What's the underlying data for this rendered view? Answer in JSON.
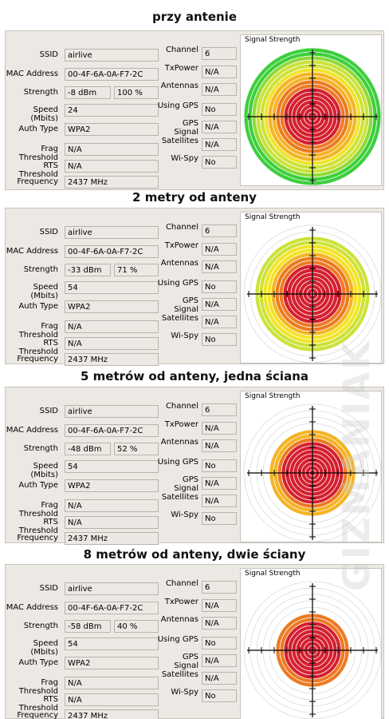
{
  "left_labels": [
    "SSID",
    "MAC Address",
    "Strength",
    "Speed (Mbits)",
    "Auth Type",
    "Frag Threshold",
    "RTS Threshold",
    "Frequency"
  ],
  "right_labels": [
    "Channel",
    "TxPower",
    "Antennas",
    "Using GPS",
    "GPS Signal",
    "Satellites",
    "Wi-Spy"
  ],
  "signal_label": "Signal Strength",
  "watermark": "GIZMANIAK",
  "panels": [
    {
      "title": "przy antenie",
      "left": [
        "airlive",
        "00-4F-6A-0A-F7-2C",
        "-8 dBm",
        "24",
        "WPA2",
        "N/A",
        "N/A",
        "2437 MHz"
      ],
      "strength_percent": "100 %",
      "right": [
        "6",
        "N/A",
        "N/A",
        "No",
        "N/A",
        "N/A",
        "No"
      ]
    },
    {
      "title": "2 metry od anteny",
      "left": [
        "airlive",
        "00-4F-6A-0A-F7-2C",
        "-33 dBm",
        "54",
        "WPA2",
        "N/A",
        "N/A",
        "2437 MHz"
      ],
      "strength_percent": "71 %",
      "right": [
        "6",
        "N/A",
        "N/A",
        "No",
        "N/A",
        "N/A",
        "No"
      ]
    },
    {
      "title": "5 metrów od anteny, jedna ściana",
      "left": [
        "airlive",
        "00-4F-6A-0A-F7-2C",
        "-48 dBm",
        "54",
        "WPA2",
        "N/A",
        "N/A",
        "2437 MHz"
      ],
      "strength_percent": "52 %",
      "right": [
        "6",
        "N/A",
        "N/A",
        "No",
        "N/A",
        "N/A",
        "No"
      ]
    },
    {
      "title": "8 metrów od anteny, dwie ściany",
      "left": [
        "airlive",
        "00-4F-6A-0A-F7-2C",
        "-58 dBm",
        "54",
        "WPA2",
        "N/A",
        "N/A",
        "2437 MHz"
      ],
      "strength_percent": "40 %",
      "right": [
        "6",
        "N/A",
        "N/A",
        "No",
        "N/A",
        "N/A",
        "No"
      ]
    }
  ]
}
